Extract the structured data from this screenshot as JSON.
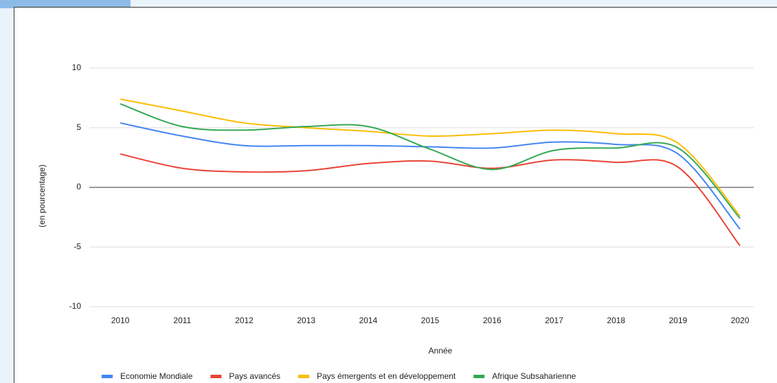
{
  "chart_data": {
    "type": "line",
    "x_label": "Année",
    "y_label": "(en pourcentage)",
    "x": [
      2010,
      2011,
      2012,
      2013,
      2014,
      2015,
      2016,
      2017,
      2018,
      2019,
      2020
    ],
    "xlim": [
      2009.5,
      2020.22
    ],
    "xticks": [
      2010,
      2011,
      2012,
      2013,
      2014,
      2015,
      2016,
      2017,
      2018,
      2019,
      2020
    ],
    "ylim": [
      -10,
      10
    ],
    "yticks": [
      -10,
      -5,
      0,
      5,
      10
    ],
    "grid": true,
    "legend": "bottom",
    "series": [
      {
        "name": "Economie Mondiale",
        "color": "#4285f4",
        "values": [
          5.4,
          4.3,
          3.5,
          3.5,
          3.5,
          3.4,
          3.3,
          3.8,
          3.6,
          2.8,
          -3.5
        ]
      },
      {
        "name": "Pays avancés",
        "color": "#ea4335",
        "values": [
          2.8,
          1.6,
          1.3,
          1.4,
          2.0,
          2.2,
          1.6,
          2.3,
          2.1,
          1.7,
          -4.9
        ]
      },
      {
        "name": "Pays émergents et en développement",
        "color": "#fbbc04",
        "values": [
          7.4,
          6.4,
          5.4,
          5.0,
          4.7,
          4.3,
          4.5,
          4.8,
          4.5,
          3.7,
          -2.4
        ]
      },
      {
        "name": "Afrique Subsaharienne",
        "color": "#34a853",
        "values": [
          7.0,
          5.1,
          4.8,
          5.1,
          5.1,
          3.2,
          1.5,
          3.1,
          3.3,
          3.3,
          -2.6
        ]
      }
    ]
  }
}
